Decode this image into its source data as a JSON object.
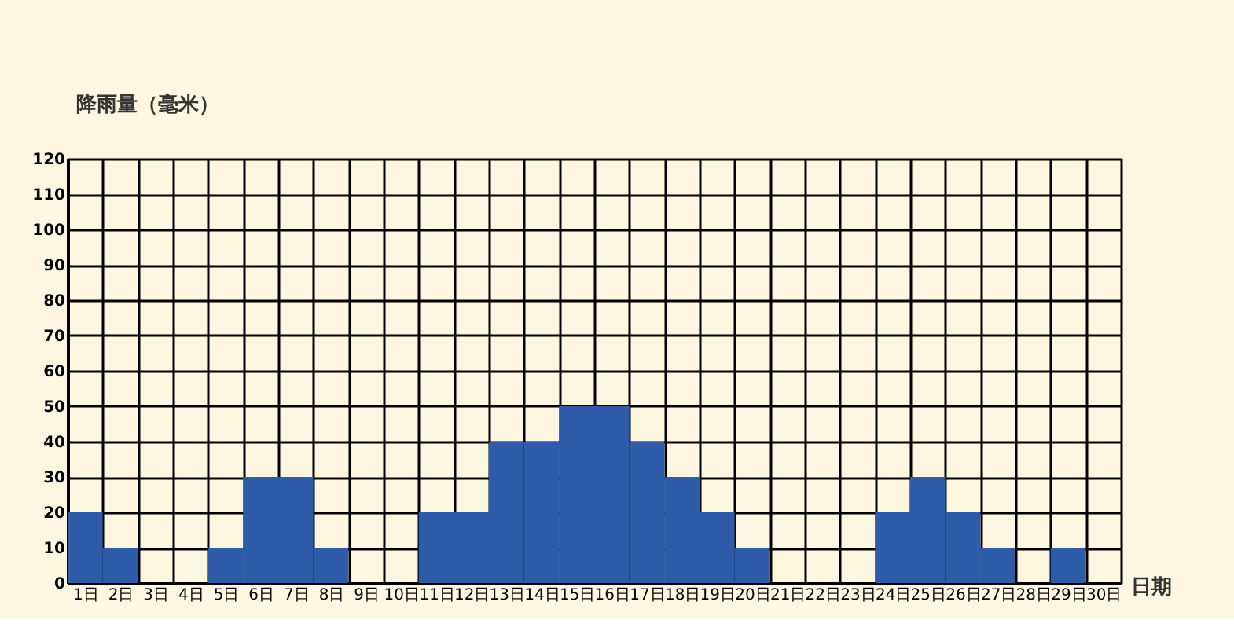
{
  "chart_data": {
    "type": "bar",
    "xlabel": "日期",
    "ylabel": "降雨量（毫米）",
    "categories": [
      "1日",
      "2日",
      "3日",
      "4日",
      "5日",
      "6日",
      "7日",
      "8日",
      "9日",
      "10日",
      "11日",
      "12日",
      "13日",
      "14日",
      "15日",
      "16日",
      "17日",
      "18日",
      "19日",
      "20日",
      "21日",
      "22日",
      "23日",
      "24日",
      "25日",
      "26日",
      "27日",
      "28日",
      "29日",
      "30日"
    ],
    "values": [
      20,
      10,
      0,
      0,
      10,
      30,
      30,
      10,
      0,
      0,
      20,
      20,
      40,
      40,
      50,
      50,
      40,
      30,
      20,
      10,
      0,
      0,
      0,
      20,
      30,
      20,
      10,
      0,
      10,
      0
    ],
    "color": "#2e5ca8",
    "ylim": [
      0,
      120
    ],
    "yticks": [
      0,
      10,
      20,
      30,
      40,
      50,
      60,
      70,
      80,
      90,
      100,
      110,
      120
    ],
    "grid": true
  }
}
